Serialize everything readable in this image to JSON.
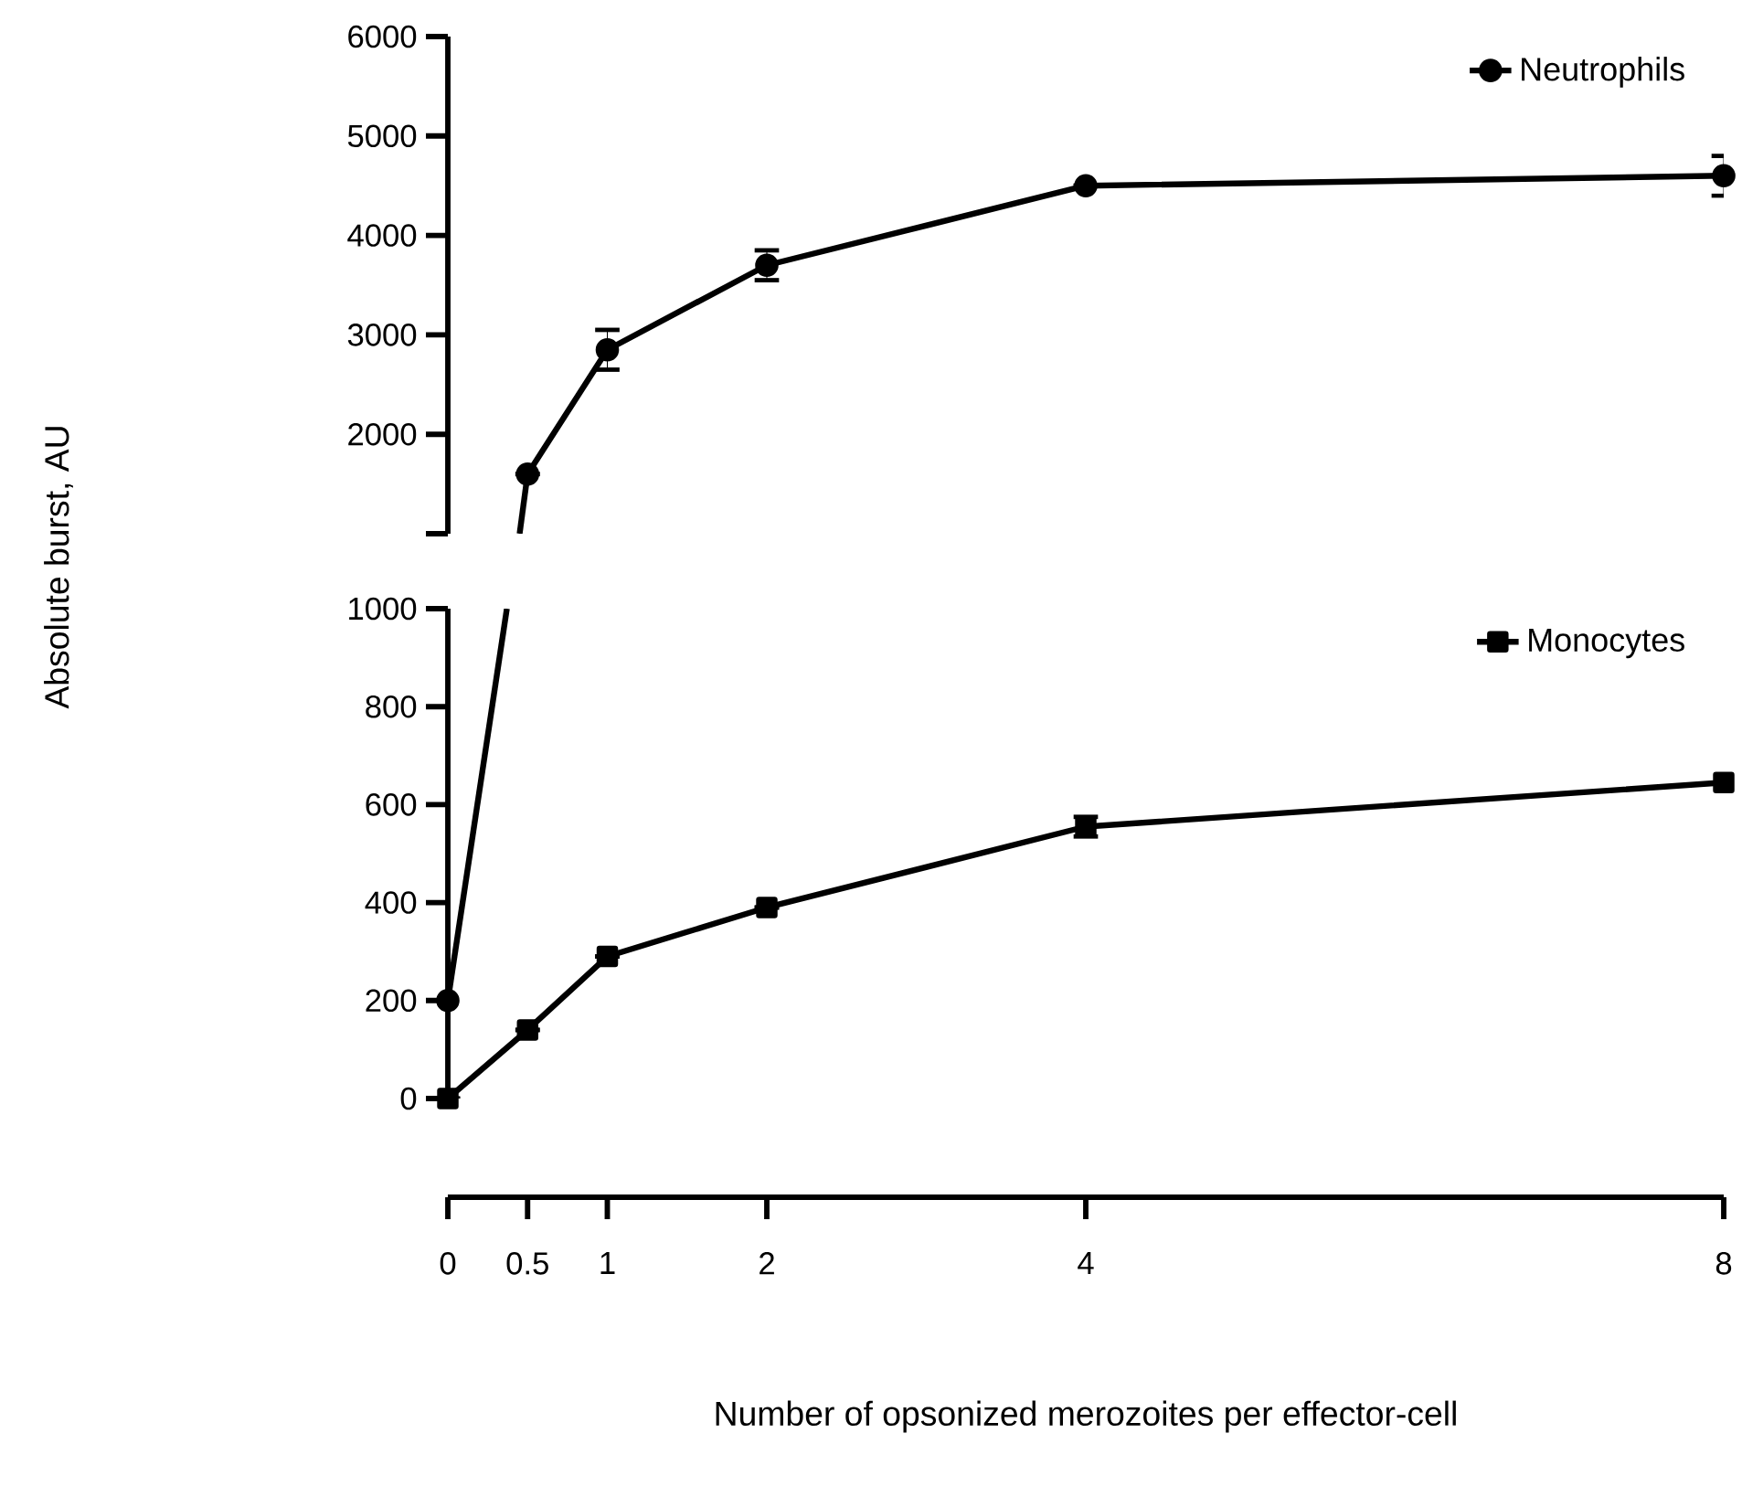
{
  "chart_data": [
    {
      "type": "line",
      "ylabel": "Absolute burst, AU",
      "x": [
        0.5,
        1,
        2,
        4,
        8
      ],
      "xlim": [
        0,
        8
      ],
      "ylim": [
        1000,
        6000
      ],
      "yticks": [
        {
          "value": 1000,
          "label": null
        },
        2000,
        3000,
        4000,
        5000,
        6000
      ],
      "tick_labels": "y",
      "legend": "top right",
      "grid": false,
      "series": [
        {
          "color": "#000000",
          "x": [
            0.45,
            0.5
          ],
          "values": [
            1000,
            1600
          ]
        },
        {
          "name": "Neutrophils",
          "color": "#000000",
          "marker": "circle",
          "values": [
            1600,
            2850,
            3700,
            4500,
            4600
          ],
          "errors": [
            null,
            200,
            150,
            null,
            200
          ]
        }
      ]
    },
    {
      "type": "line",
      "xlabel": "Number of opsonized merozoites per effector-cell",
      "x": [
        0,
        0.5,
        1,
        2,
        4,
        8
      ],
      "xlim": [
        0,
        8
      ],
      "ylim": [
        0,
        1000
      ],
      "xticks": [
        0,
        0.5,
        1,
        2,
        4,
        8
      ],
      "yticks": [
        0,
        200,
        400,
        600,
        800,
        1000
      ],
      "legend": "top right",
      "grid": false,
      "series": [
        {
          "color": "#000000",
          "x": [
            0,
            0.37
          ],
          "values": [
            200,
            1000
          ]
        },
        {
          "color": "#000000",
          "marker": "circle",
          "x": [
            0
          ],
          "values": [
            200
          ]
        },
        {
          "name": "Monocytes",
          "color": "#000000",
          "marker": "square",
          "values": [
            0,
            140,
            290,
            390,
            555,
            645
          ],
          "errors": [
            null,
            null,
            null,
            null,
            20,
            null
          ]
        }
      ]
    }
  ]
}
